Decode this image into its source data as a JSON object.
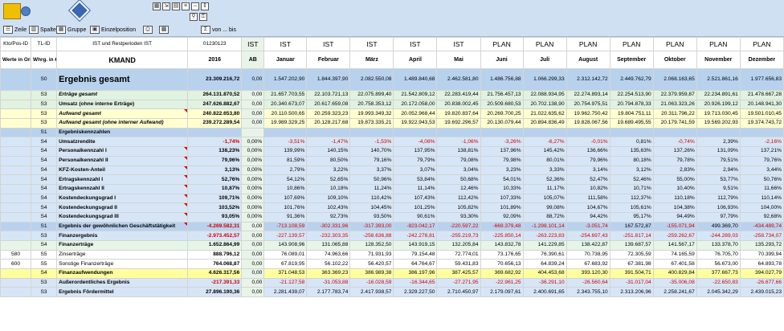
{
  "toolbar": {
    "zeile": "Zeile",
    "spalte": "Spalte",
    "gruppe": "Gruppe",
    "einzelposition": "Einzelposition",
    "von_bis": "von ... bis"
  },
  "header1": [
    "Kto/Pos-ID",
    "TL-ID",
    "IST und Restperioden IST",
    "01230123",
    "IST",
    "IST",
    "IST",
    "IST",
    "IST",
    "IST",
    "PLAN",
    "PLAN",
    "PLAN",
    "PLAN",
    "PLAN",
    "PLAN",
    "PLAN"
  ],
  "header2": [
    "Werte in Original",
    "Whrg. in €",
    "KMAND",
    "2016",
    "AB",
    "Januar",
    "Februar",
    "März",
    "April",
    "Mai",
    "Juni",
    "Juli",
    "August",
    "September",
    "Oktober",
    "November",
    "Dezember"
  ],
  "rows": [
    {
      "style": "big",
      "id": "",
      "tl": "S0",
      "label": "Ergebnis gesamt",
      "vals": [
        "23.309.216,72",
        "0,00",
        "1.547.202,90",
        "1.844.397,90",
        "2.082.550,08",
        "1.489.840,68",
        "2.462.581,80",
        "1.486.756,88",
        "1.066.299,33",
        "2.312.142,72",
        "2.449.762,79",
        "2.068.163,65",
        "2.521.861,16",
        "1.977.656,83"
      ]
    },
    {
      "style": "g",
      "id": "",
      "tl": "S3",
      "label": "Erträge gesamt",
      "lstyle": "it",
      "vals": [
        "264.131.870,52",
        "0,00",
        "21.657.703,55",
        "22.103.721,13",
        "22.075.899,40",
        "21.542.809,12",
        "22.283.419,44",
        "21.756.457,13",
        "22.088.934,95",
        "22.274.893,14",
        "22.254.513,90",
        "22.379.959,87",
        "22.234.891,61",
        "21.478.667,28"
      ]
    },
    {
      "style": "g",
      "id": "",
      "tl": "S3",
      "label": "Umsatz (ohne interne Erträge)",
      "lstyle": "bold",
      "vals": [
        "247.626.882,67",
        "0,00",
        "20.340.673,07",
        "20.617.659,08",
        "20.758.353,12",
        "20.172.058,00",
        "20.838.002,45",
        "20.509.680,53",
        "20.702.138,90",
        "20.754.975,51",
        "20.794.878,33",
        "21.063.323,26",
        "20.926.199,12",
        "20.148.941,30"
      ]
    },
    {
      "style": "y",
      "id": "",
      "tl": "S3",
      "label": "Aufwand gesamt",
      "lstyle": "it",
      "vals": [
        "240.822.653,80",
        "0,00",
        "20.110.500,65",
        "20.259.323,23",
        "19.993.349,32",
        "20.052.968,44",
        "19.820.837,64",
        "20.269.700,25",
        "21.022.635,62",
        "19.962.750,42",
        "19.804.751,11",
        "20.311.796,22",
        "19.713.030,45",
        "19.501.010,45"
      ]
    },
    {
      "style": "y",
      "id": "",
      "tl": "S3",
      "label": "Aufwand gesamt (ohne interner Aufwand)",
      "lstyle": "it",
      "vals": [
        "239.272.289,54",
        "0,00",
        "19.989.329,25",
        "20.128.217,68",
        "19.873.335,21",
        "19.922.943,53",
        "19.692.296,57",
        "20.130.079,44",
        "20.894.836,49",
        "19.828.067,56",
        "19.689.495,55",
        "20.179.741,59",
        "19.569.202,93",
        "19.374.743,72"
      ]
    },
    {
      "style": "bd",
      "id": "",
      "tl": "S1",
      "label": "Ergebniskennzahlen",
      "lstyle": "bold",
      "vals": [
        "",
        "",
        "",
        "",
        "",
        "",
        "",
        "",
        "",
        "",
        "",
        "",
        "",
        ""
      ]
    },
    {
      "style": "b",
      "id": "",
      "tl": "S4",
      "label": "Umsatzrendite",
      "lstyle": "bold",
      "vals": [
        "-1,74%",
        "0,00%",
        "-3,51%",
        "-1,47%",
        "-1,53%",
        "-4,08%",
        "-1,06%",
        "-3,26%",
        "-6,27%",
        "-0,01%",
        "0,81%",
        "-0,74%",
        "2,39%",
        "-2,16%"
      ]
    },
    {
      "style": "b",
      "id": "",
      "tl": "S4",
      "label": "Personalkennzahl I",
      "lstyle": "bold",
      "vals": [
        "138,23%",
        "0,00%",
        "139,99%",
        "140,15%",
        "140,70%",
        "137,95%",
        "138,81%",
        "137,96%",
        "145,42%",
        "136,66%",
        "135,63%",
        "137,26%",
        "131,09%",
        "137,21%"
      ]
    },
    {
      "style": "b",
      "id": "",
      "tl": "S4",
      "label": "Personalkennzahl II",
      "lstyle": "bold",
      "vals": [
        "79,96%",
        "0,00%",
        "81,59%",
        "80,50%",
        "79,16%",
        "79,79%",
        "79,08%",
        "79,98%",
        "80,01%",
        "79,96%",
        "80,18%",
        "79,78%",
        "79,51%",
        "79,76%"
      ]
    },
    {
      "style": "b",
      "id": "",
      "tl": "S4",
      "label": "KFZ-Kosten-Anteil",
      "lstyle": "bold",
      "vals": [
        "3,13%",
        "0,00%",
        "2,79%",
        "3,22%",
        "3,37%",
        "3,07%",
        "3,04%",
        "3,23%",
        "3,33%",
        "3,14%",
        "3,12%",
        "2,83%",
        "2,94%",
        "3,44%"
      ]
    },
    {
      "style": "b",
      "id": "",
      "tl": "S4",
      "label": "Ertragskennzahl I",
      "lstyle": "bold",
      "vals": [
        "52,76%",
        "0,00%",
        "54,12%",
        "52,65%",
        "50,96%",
        "53,84%",
        "50,68%",
        "54,01%",
        "52,36%",
        "52,47%",
        "52,46%",
        "55,00%",
        "53,77%",
        "50,76%"
      ]
    },
    {
      "style": "b",
      "id": "",
      "tl": "S4",
      "label": "Ertragskennzahl II",
      "lstyle": "bold",
      "vals": [
        "10,87%",
        "0,00%",
        "10,86%",
        "10,18%",
        "11,24%",
        "11,14%",
        "12,46%",
        "10,33%",
        "11,17%",
        "10,82%",
        "10,71%",
        "10,40%",
        "9,51%",
        "11,66%"
      ]
    },
    {
      "style": "b",
      "id": "",
      "tl": "S4",
      "label": "Kostendeckungsgrad I",
      "lstyle": "bold",
      "vals": [
        "109,71%",
        "0,00%",
        "107,69%",
        "109,10%",
        "110,42%",
        "107,43%",
        "112,42%",
        "107,33%",
        "105,07%",
        "111,58%",
        "112,37%",
        "110,18%",
        "112,79%",
        "110,14%"
      ]
    },
    {
      "style": "b",
      "id": "",
      "tl": "S4",
      "label": "Kostendeckungsgrad II",
      "lstyle": "bold",
      "vals": [
        "103,52%",
        "0,00%",
        "101,76%",
        "102,43%",
        "104,45%",
        "101,25%",
        "105,82%",
        "101,89%",
        "99,08%",
        "104,67%",
        "105,61%",
        "104,38%",
        "106,93%",
        "104,00%"
      ]
    },
    {
      "style": "b",
      "id": "",
      "tl": "S4",
      "label": "Kostendeckungsgrad III",
      "lstyle": "bold",
      "vals": [
        "93,05%",
        "0,00%",
        "91,36%",
        "92,73%",
        "93,50%",
        "90,61%",
        "93,30%",
        "92,09%",
        "88,72%",
        "94,42%",
        "95,17%",
        "94,49%",
        "97,79%",
        "92,68%"
      ]
    },
    {
      "style": "bd",
      "id": "",
      "tl": "S1",
      "label": "Ergebnis der gewöhnlichen Geschäftstätigkeit",
      "lstyle": "bold",
      "red": true,
      "vals": [
        "-4.269.582,31",
        "0,00",
        "-713.108,59",
        "-302.331,96",
        "-317.393,00",
        "-823.042,17",
        "-220.597,22",
        "-669.379,48",
        "-1.298.101,14",
        "-3.051,74",
        "167.572,87",
        "-155.071,94",
        "499.369,70",
        "-434.489,74"
      ]
    },
    {
      "style": "b",
      "id": "",
      "tl": "S3",
      "label": "Finanzergebnis",
      "lstyle": "bold",
      "red": true,
      "vals": [
        "-2.973.452,57",
        "0,00",
        "-227.139,57",
        "-232.303,35",
        "-258.636,88",
        "-242.278,81",
        "-255.219,73",
        "-225.850,14",
        "-263.223,83",
        "-254.697,43",
        "-251.817,14",
        "-259.262,67",
        "-244.289,03",
        "-258.734,07"
      ]
    },
    {
      "style": "gd",
      "id": "",
      "tl": "S4",
      "label": "Finanzerträge",
      "lstyle": "bold",
      "vals": [
        "1.652.864,99",
        "0,00",
        "143.908,96",
        "131.065,88",
        "128.352,50",
        "143.919,15",
        "132.205,84",
        "143.832,78",
        "141.229,85",
        "138.422,87",
        "139.687,57",
        "141.567,17",
        "133.378,70",
        "135.293,72"
      ]
    },
    {
      "style": "w",
      "id": "580",
      "tl": "S5",
      "label": "Zinserträge",
      "lstyle": "",
      "vals": [
        "888.796,12",
        "0,00",
        "76.089,01",
        "74.963,66",
        "71.931,93",
        "79.154,48",
        "72.774,01",
        "73.176,65",
        "76.390,61",
        "70.738,95",
        "72.305,59",
        "74.165,59",
        "76.705,70",
        "70.399,94"
      ]
    },
    {
      "style": "w",
      "id": "600",
      "tl": "S5",
      "label": "Sonstige Finanzerträge",
      "lstyle": "",
      "vals": [
        "764.068,87",
        "0,00",
        "67.819,95",
        "56.102,22",
        "56.420,57",
        "64.764,67",
        "59.431,83",
        "70.656,13",
        "64.839,24",
        "67.683,92",
        "67.381,98",
        "67.401,58",
        "56.673,00",
        "64.893,78"
      ]
    },
    {
      "style": "yl",
      "id": "",
      "tl": "S4",
      "label": "Finanzaufwendungen",
      "lstyle": "bold",
      "vals": [
        "4.626.317,56",
        "0,00",
        "371.048,53",
        "363.369,23",
        "386.989,38",
        "386.197,96",
        "387.425,57",
        "369.682,92",
        "404.453,68",
        "393.120,30",
        "391.504,71",
        "400.829,84",
        "377.667,73",
        "394.027,79"
      ]
    },
    {
      "style": "b",
      "id": "",
      "tl": "S3",
      "label": "Außerordentliches Ergebnis",
      "lstyle": "bold",
      "red": true,
      "vals": [
        "-217.391,33",
        "0,00",
        "-21.127,58",
        "-31.053,88",
        "-16.028,59",
        "-16.344,65",
        "-27.271,95",
        "-22.961,25",
        "-36.291,10",
        "-26.560,64",
        "-31.017,04",
        "-35.006,08",
        "-22.650,83",
        "-26.677,66"
      ]
    },
    {
      "style": "b",
      "id": "",
      "tl": "S3",
      "label": "Ergebnis Fördermittel",
      "lstyle": "bold",
      "vals": [
        "27.896.190,36",
        "0,00",
        "2.281.439,07",
        "2.177.783,74",
        "2.417.938,57",
        "2.329.227,50",
        "2.710.450,97",
        "2.179.097,61",
        "2.400.691,65",
        "2.343.755,10",
        "2.313.206,96",
        "2.258.241,67",
        "2.045.342,29",
        "2.439.015,23"
      ]
    }
  ]
}
